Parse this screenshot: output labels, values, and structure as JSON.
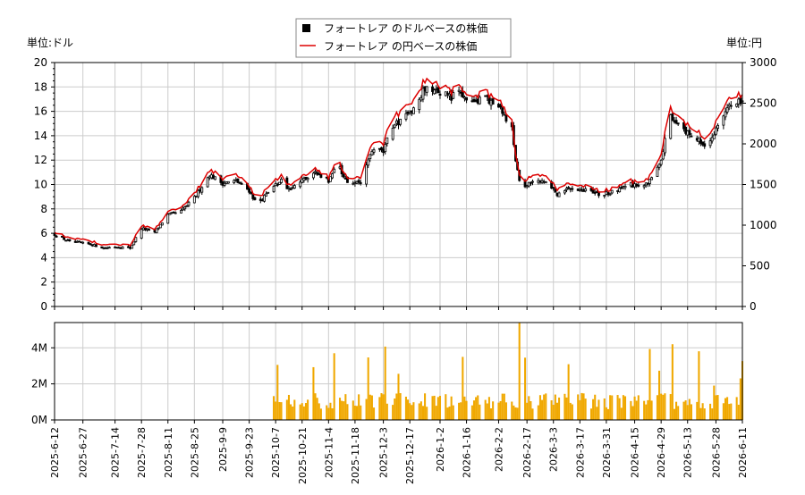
{
  "chart_data": [
    {
      "type": "candlestick+line",
      "legend": {
        "position": "top-center",
        "entries": [
          {
            "label": "フォートレア のドルベースの株価",
            "marker": "square",
            "color": "#000000"
          },
          {
            "label": "フォートレア の円ベースの株価",
            "marker": "line",
            "color": "#dd0000"
          }
        ]
      },
      "left_axis": {
        "unit_label": "単位:ドル",
        "ylim": [
          0,
          20
        ],
        "ticks": [
          "0",
          "2",
          "4",
          "6",
          "8",
          "10",
          "12",
          "14",
          "16",
          "18",
          "20"
        ]
      },
      "right_axis": {
        "unit_label": "単位:円",
        "ylim": [
          0,
          3000
        ],
        "ticks": [
          "0",
          "500",
          "1000",
          "1500",
          "2000",
          "2500",
          "3000"
        ]
      },
      "grid": true,
      "x_range": [
        "2025-06-12",
        "2026-06-11"
      ],
      "anchor_points_usd": [
        [
          "2025-06-12",
          5.9
        ],
        [
          "2025-06-20",
          5.3
        ],
        [
          "2025-07-01",
          5.1
        ],
        [
          "2025-07-08",
          4.8
        ],
        [
          "2025-07-14",
          4.9
        ],
        [
          "2025-07-22",
          4.8
        ],
        [
          "2025-07-28",
          6.4
        ],
        [
          "2025-08-04",
          6.1
        ],
        [
          "2025-08-11",
          7.5
        ],
        [
          "2025-08-18",
          7.8
        ],
        [
          "2025-08-25",
          8.9
        ],
        [
          "2025-09-02",
          10.8
        ],
        [
          "2025-09-09",
          10.1
        ],
        [
          "2025-09-16",
          10.3
        ],
        [
          "2025-09-23",
          9.5
        ],
        [
          "2025-09-27",
          8.4
        ],
        [
          "2025-10-03",
          9.3
        ],
        [
          "2025-10-10",
          10.4
        ],
        [
          "2025-10-14",
          9.6
        ],
        [
          "2025-10-21",
          10.4
        ],
        [
          "2025-10-28",
          10.9
        ],
        [
          "2025-11-04",
          10.3
        ],
        [
          "2025-11-08",
          11.8
        ],
        [
          "2025-11-14",
          10.2
        ],
        [
          "2025-11-21",
          10.1
        ],
        [
          "2025-11-26",
          12.6
        ],
        [
          "2025-12-03",
          12.8
        ],
        [
          "2025-12-07",
          14.5
        ],
        [
          "2025-12-15",
          15.8
        ],
        [
          "2025-12-20",
          16.4
        ],
        [
          "2025-12-25",
          17.9
        ],
        [
          "2026-01-02",
          17.6
        ],
        [
          "2026-01-08",
          17.2
        ],
        [
          "2026-01-12",
          17.8
        ],
        [
          "2026-01-17",
          16.6
        ],
        [
          "2026-01-24",
          17.1
        ],
        [
          "2026-02-01",
          16.7
        ],
        [
          "2026-02-05",
          15.6
        ],
        [
          "2026-02-09",
          14.6
        ],
        [
          "2026-02-11",
          11.8
        ],
        [
          "2026-02-14",
          9.6
        ],
        [
          "2026-02-20",
          10.4
        ],
        [
          "2026-02-28",
          10.2
        ],
        [
          "2026-03-05",
          9.2
        ],
        [
          "2026-03-12",
          9.7
        ],
        [
          "2026-03-20",
          9.5
        ],
        [
          "2026-03-27",
          9.2
        ],
        [
          "2026-04-05",
          9.4
        ],
        [
          "2026-04-12",
          10.1
        ],
        [
          "2026-04-19",
          9.6
        ],
        [
          "2026-04-25",
          10.8
        ],
        [
          "2026-04-29",
          11.9
        ],
        [
          "2026-05-03",
          15.8
        ],
        [
          "2026-05-10",
          14.6
        ],
        [
          "2026-05-17",
          13.7
        ],
        [
          "2026-05-24",
          13.2
        ],
        [
          "2026-05-31",
          15.6
        ],
        [
          "2026-06-06",
          16.9
        ],
        [
          "2026-06-11",
          16.8
        ]
      ],
      "yen_to_usd_ratio": 155
    },
    {
      "type": "bar",
      "series": [
        {
          "name": "",
          "color": "#f0a800"
        }
      ],
      "y_ticks": [
        "0M",
        "2M",
        "4M"
      ],
      "ylim_millions": [
        0,
        5.4
      ],
      "volume_start": "2025-10-06",
      "x_tick_labels": [
        "2025-6-12",
        "2025-6-27",
        "2025-7-14",
        "2025-7-28",
        "2025-8-11",
        "2025-8-25",
        "2025-9-9",
        "2025-9-23",
        "2025-10-7",
        "2025-10-21",
        "2025-11-4",
        "2025-11-18",
        "2025-12-3",
        "2025-12-17",
        "2026-1-2",
        "2026-1-16",
        "2026-2-2",
        "2026-2-17",
        "2026-3-3",
        "2026-3-17",
        "2026-3-31",
        "2026-4-15",
        "2026-4-29",
        "2026-5-13",
        "2026-5-28",
        "2026-6-11"
      ],
      "x_tick_dates": [
        "2025-06-12",
        "2025-06-27",
        "2025-07-14",
        "2025-07-28",
        "2025-08-11",
        "2025-08-25",
        "2025-09-09",
        "2025-09-23",
        "2025-10-07",
        "2025-10-21",
        "2025-11-04",
        "2025-11-18",
        "2025-12-03",
        "2025-12-17",
        "2026-01-02",
        "2026-01-16",
        "2026-02-02",
        "2026-02-17",
        "2026-03-03",
        "2026-03-17",
        "2026-03-31",
        "2026-04-15",
        "2026-04-29",
        "2026-05-13",
        "2026-05-28",
        "2026-06-11"
      ]
    }
  ]
}
